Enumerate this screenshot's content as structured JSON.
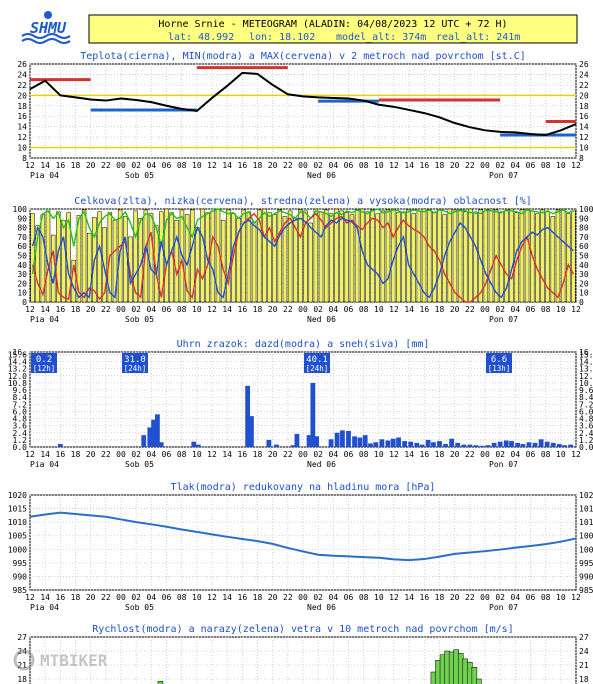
{
  "header": {
    "logo_text": "SHMU",
    "title": "Horne Srnie - METEOGRAM (ALADIN: 04/08/2023 12 UTC + 72 H)",
    "lat": "lat: 48.992",
    "lon": "lon: 18.102",
    "model_alt": "model_alt: 374m",
    "real_alt": "real_alt: 241m"
  },
  "watermark": "MTBIKER",
  "x_ticks": [
    "12",
    "14",
    "16",
    "18",
    "20",
    "22",
    "00",
    "02",
    "04",
    "06",
    "08",
    "10",
    "12",
    "14",
    "16",
    "18",
    "20",
    "22",
    "00",
    "02",
    "04",
    "06",
    "08",
    "10",
    "12",
    "14",
    "16",
    "18",
    "20",
    "22",
    "00",
    "02",
    "04",
    "06",
    "08",
    "10",
    "12"
  ],
  "x_day_labels": [
    {
      "label": "Pia 04",
      "index": 0
    },
    {
      "label": "Sob 05",
      "index": 6
    },
    {
      "label": "Ned 06",
      "index": 18
    },
    {
      "label": "Pon 07",
      "index": 30
    }
  ],
  "colors": {
    "temp": "#000000",
    "tmin": "#1e64c8",
    "tmax": "#d23232",
    "ref": "#e6d200",
    "cloud_total": "#f0f064",
    "cloud_low": "#e03030",
    "cloud_mid": "#20c020",
    "cloud_high": "#2050d0",
    "precip": "#2050d0",
    "pressure": "#2a6ec8",
    "wind": "#2050d0",
    "gust": "#70d050",
    "box": "#2050d0"
  },
  "chart_data": [
    {
      "type": "line",
      "title": "Teplota(cierna), MIN(modra) a MAX(cervena) v 2 metroch nad povrchom [st.C]",
      "ylim": [
        8,
        26
      ],
      "y_ticks": [
        8,
        10,
        12,
        14,
        16,
        18,
        20,
        22,
        24,
        26
      ],
      "ref_lines": [
        20,
        10
      ],
      "series": [
        {
          "name": "Teplota",
          "x": [
            0,
            1,
            2,
            3,
            4,
            5,
            6,
            7,
            8,
            9,
            10,
            11,
            12,
            13,
            14,
            15,
            16,
            17,
            18,
            19,
            20,
            21,
            22,
            23,
            24,
            25,
            26,
            27,
            28,
            29,
            30,
            31,
            32,
            33,
            34,
            35,
            36
          ],
          "values": [
            21.2,
            22.8,
            20.0,
            19.6,
            19.2,
            19.0,
            19.4,
            19.1,
            18.7,
            18.0,
            17.4,
            17.0,
            19.5,
            21.8,
            24.3,
            24.1,
            22.0,
            20.2,
            19.8,
            19.6,
            19.5,
            19.4,
            19.0,
            18.2,
            17.8,
            17.2,
            16.6,
            15.8,
            14.7,
            13.9,
            13.3,
            13.0,
            12.9,
            12.6,
            12.4,
            13.3,
            14.5
          ]
        }
      ],
      "min_segments": [
        {
          "x0": 4,
          "x1": 11,
          "value": 17.2
        },
        {
          "x0": 19,
          "x1": 23,
          "value": 18.9
        },
        {
          "x0": 31,
          "x1": 36,
          "value": 12.4
        }
      ],
      "max_segments": [
        {
          "x0": 0,
          "x1": 4,
          "value": 23.0
        },
        {
          "x0": 11,
          "x1": 17,
          "value": 25.3
        },
        {
          "x0": 23,
          "x1": 31,
          "value": 19.1
        },
        {
          "x0": 34,
          "x1": 36,
          "value": 15.0
        }
      ]
    },
    {
      "type": "bar",
      "title": "Celkova(zlta), nizka(cervena), stredna(zelena) a vysoka(modra) oblacnost [%]",
      "ylim": [
        0,
        100
      ],
      "y_ticks": [
        0,
        10,
        20,
        30,
        40,
        50,
        60,
        70,
        80,
        90,
        100
      ],
      "series": [
        {
          "name": "Celkova",
          "values": [
            95,
            82,
            94,
            98,
            72,
            97,
            88,
            96,
            45,
            93,
            99,
            74,
            91,
            97,
            80,
            96,
            88,
            99,
            92,
            70,
            98,
            90,
            99,
            95,
            82,
            97,
            100,
            96,
            88,
            99,
            94,
            99,
            80,
            100,
            96,
            98,
            100,
            88,
            99,
            95,
            90,
            99,
            97,
            86,
            99,
            100,
            96,
            94,
            99,
            92,
            98,
            90,
            99,
            98,
            85,
            100,
            97,
            99,
            95,
            100,
            98,
            96,
            94,
            99,
            100,
            97,
            99,
            95,
            98,
            99,
            100,
            96,
            97,
            99,
            95,
            98,
            100,
            99,
            96,
            99,
            94,
            100,
            99,
            98,
            97,
            100,
            95,
            99,
            98,
            100,
            99,
            97,
            98,
            100,
            96,
            99,
            100,
            98,
            95,
            99,
            97,
            92,
            99,
            100,
            95,
            98
          ]
        },
        {
          "name": "nizka",
          "values": [
            40,
            20,
            8,
            35,
            55,
            10,
            5,
            3,
            40,
            10,
            5,
            15,
            12,
            3,
            10,
            50,
            55,
            60,
            65,
            30,
            10,
            5,
            60,
            75,
            30,
            5,
            40,
            55,
            30,
            45,
            12,
            5,
            35,
            25,
            40,
            70,
            60,
            35,
            20,
            50,
            75,
            85,
            90,
            95,
            88,
            70,
            80,
            65,
            75,
            85,
            90,
            80,
            70,
            85,
            90,
            95,
            88,
            80,
            85,
            90,
            92,
            85,
            88,
            82,
            78,
            85,
            90,
            88,
            80,
            85,
            70,
            80,
            88,
            82,
            78,
            75,
            70,
            60,
            55,
            45,
            30,
            20,
            10,
            5,
            0,
            0,
            5,
            10,
            20,
            35,
            50,
            40,
            30,
            25,
            45,
            60,
            70,
            50,
            35,
            25,
            15,
            10,
            5,
            20,
            40,
            30
          ]
        },
        {
          "name": "stredna",
          "values": [
            30,
            70,
            95,
            98,
            90,
            96,
            80,
            88,
            60,
            90,
            97,
            80,
            70,
            85,
            92,
            95,
            88,
            90,
            97,
            85,
            70,
            88,
            95,
            93,
            80,
            60,
            88,
            95,
            90,
            92,
            80,
            70,
            88,
            92,
            95,
            98,
            100,
            97,
            95,
            96,
            90,
            95,
            97,
            85,
            90,
            96,
            92,
            95,
            98,
            96,
            94,
            90,
            97,
            96,
            90,
            98,
            97,
            95,
            92,
            96,
            94,
            98,
            96,
            99,
            97,
            95,
            98,
            100,
            96,
            97,
            99,
            98,
            96,
            97,
            99,
            98,
            97,
            99,
            96,
            99,
            98,
            95,
            97,
            99,
            98,
            96,
            97,
            95,
            99,
            98,
            97,
            96,
            99,
            98,
            97,
            95,
            99,
            98,
            97,
            96,
            98,
            95,
            97,
            99,
            96,
            98
          ]
        },
        {
          "name": "vysoka",
          "values": [
            60,
            80,
            70,
            40,
            20,
            55,
            70,
            30,
            15,
            5,
            10,
            5,
            45,
            60,
            35,
            10,
            5,
            55,
            70,
            20,
            30,
            40,
            60,
            35,
            30,
            65,
            40,
            55,
            70,
            50,
            40,
            60,
            80,
            70,
            45,
            35,
            10,
            5,
            30,
            60,
            75,
            85,
            88,
            82,
            78,
            70,
            65,
            60,
            72,
            80,
            85,
            88,
            90,
            86,
            80,
            75,
            70,
            82,
            88,
            85,
            90,
            88,
            86,
            80,
            55,
            40,
            35,
            30,
            20,
            25,
            45,
            60,
            70,
            40,
            30,
            20,
            10,
            5,
            15,
            30,
            50,
            65,
            75,
            85,
            80,
            70,
            60,
            45,
            30,
            20,
            10,
            5,
            15,
            35,
            55,
            65,
            70,
            75,
            72,
            78,
            80,
            75,
            70,
            65,
            60,
            55
          ]
        }
      ]
    },
    {
      "type": "bar",
      "title": "Uhrn zrazok: dazd(modra) a sneh(siva) [mm]",
      "ylim": [
        0,
        16
      ],
      "y_ticks": [
        0,
        1.2,
        2.4,
        3.6,
        4.8,
        6.0,
        7.2,
        8.4,
        9.6,
        10.8,
        12.0,
        13.2,
        14.4,
        15.6,
        16.0
      ],
      "y_tick_labels": [
        "0.0",
        "1.2",
        "2.4",
        "3.6",
        "4.8",
        "6.0",
        "7.2",
        "8.4",
        "9.6",
        "10.8",
        "12.0",
        "13.2",
        "14.4",
        "15.6",
        "16."
      ],
      "series": [
        {
          "name": "dazd",
          "x": [
            4,
            15,
            15.8,
            16.3,
            16.8,
            17.3,
            21.6,
            22.2,
            28.7,
            29.2,
            31.5,
            32.5,
            34.7,
            35.2,
            36.8,
            37.3,
            37.8,
            39.7,
            40.5,
            41.2,
            42.0,
            42.8,
            43.5,
            44.2,
            44.9,
            45.6,
            46.4,
            47.2,
            47.9,
            48.6,
            49.4,
            50.2,
            51.0,
            51.7,
            52.5,
            53.2,
            54.0,
            54.8,
            55.6,
            56.4,
            57.2,
            58.0,
            58.8,
            59.6,
            60.4,
            61.2,
            62.0,
            62.8,
            63.5,
            64.3,
            65.0,
            65.8,
            66.6,
            67.4,
            68.2,
            69.0,
            69.8,
            70.5,
            71.3
          ],
          "values": [
            0.5,
            2.0,
            3.3,
            4.6,
            5.5,
            0.8,
            0.9,
            0.4,
            10.3,
            5.2,
            1.2,
            0.4,
            0.3,
            2.2,
            2.0,
            10.8,
            1.8,
            1.3,
            2.4,
            2.8,
            2.7,
            1.8,
            1.6,
            2.0,
            0.6,
            0.8,
            1.3,
            1.1,
            1.4,
            1.6,
            1.0,
            0.9,
            0.7,
            0.4,
            1.2,
            0.8,
            1.0,
            0.5,
            1.4,
            0.7,
            0.4,
            0.4,
            0.3,
            0.2,
            0.3,
            0.7,
            0.9,
            1.1,
            1.0,
            0.7,
            0.5,
            0.8,
            0.7,
            1.3,
            0.9,
            0.7,
            0.5,
            0.3,
            0.4
          ]
        }
      ],
      "totals": [
        {
          "value": "0.2",
          "period": "[12h]",
          "index": 0
        },
        {
          "value": "31.0",
          "period": "[24h]",
          "index": 6
        },
        {
          "value": "40.1",
          "period": "[24h]",
          "index": 18
        },
        {
          "value": "6.6",
          "period": "[13h]",
          "index": 30
        }
      ]
    },
    {
      "type": "line",
      "title": "Tlak(modra) redukovany na hladinu mora [hPa]",
      "ylim": [
        985,
        1020
      ],
      "y_ticks": [
        985,
        990,
        995,
        1000,
        1005,
        1010,
        1015,
        1020
      ],
      "series": [
        {
          "name": "Tlak",
          "x": [
            0,
            1,
            2,
            3,
            4,
            5,
            6,
            7,
            8,
            9,
            10,
            11,
            12,
            13,
            14,
            15,
            16,
            17,
            18,
            19,
            20,
            21,
            22,
            23,
            24,
            25,
            26,
            27,
            28,
            29,
            30,
            31,
            32,
            33,
            34,
            35,
            36
          ],
          "values": [
            1012.0,
            1012.8,
            1013.5,
            1013.0,
            1012.5,
            1012.0,
            1011.0,
            1010.0,
            1009.2,
            1008.3,
            1007.3,
            1006.4,
            1005.5,
            1004.6,
            1003.8,
            1003.0,
            1002.0,
            1000.5,
            999.2,
            998.0,
            997.6,
            997.4,
            997.1,
            996.9,
            996.3,
            996.0,
            996.4,
            997.3,
            998.3,
            998.8,
            999.3,
            999.9,
            1000.6,
            1001.2,
            1001.9,
            1002.8,
            1004.0
          ]
        }
      ]
    },
    {
      "type": "bar",
      "title": "Rychlost(modra) a narazy(zelena) vetra v 10 metroch nad povrchom [m/s]",
      "ylim": [
        15,
        27
      ],
      "y_ticks": [
        15,
        18,
        21,
        24,
        27
      ],
      "series": [
        {
          "name": "narazy",
          "x": [
            8.4,
            8.6,
            8.8,
            26.6,
            26.9,
            27.2,
            27.5,
            27.8,
            28.1,
            28.4,
            28.7,
            29.0,
            29.3,
            29.6
          ],
          "values": [
            16.0,
            17.5,
            16.2,
            19.5,
            22.0,
            23.2,
            24.0,
            23.8,
            24.3,
            23.5,
            22.3,
            21.6,
            20.5,
            18.0
          ]
        }
      ]
    }
  ]
}
